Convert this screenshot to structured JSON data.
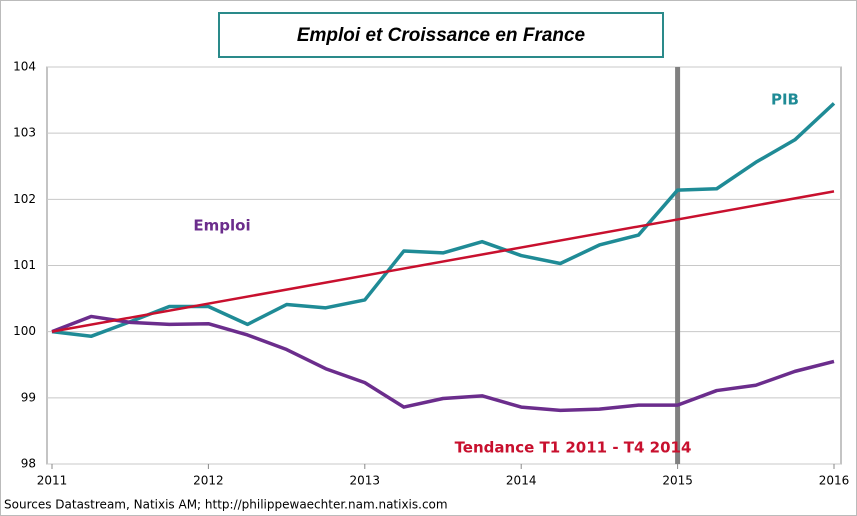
{
  "chart_data": {
    "type": "line",
    "title": "Emploi et Croissance en France",
    "source": "Sources Datastream, Natixis AM; http://philippewaechter.nam.natixis.com",
    "x": [
      2011,
      2011.25,
      2011.5,
      2011.75,
      2012,
      2012.25,
      2012.5,
      2012.75,
      2013,
      2013.25,
      2013.5,
      2013.75,
      2014,
      2014.25,
      2014.5,
      2014.75,
      2015,
      2015.25,
      2015.5,
      2015.75,
      2016
    ],
    "series": [
      {
        "name": "PIB",
        "color": "#1f8b96",
        "values": [
          100,
          99.93,
          100.15,
          100.38,
          100.38,
          100.11,
          100.41,
          100.36,
          100.48,
          101.22,
          101.19,
          101.36,
          101.15,
          101.03,
          101.31,
          101.46,
          102.14,
          102.16,
          102.56,
          102.9,
          103.45
        ]
      },
      {
        "name": "Emploi",
        "color": "#6b2d8c",
        "values": [
          100,
          100.23,
          100.14,
          100.11,
          100.12,
          99.95,
          99.73,
          99.44,
          99.23,
          98.86,
          98.99,
          99.03,
          98.86,
          98.81,
          98.83,
          98.89,
          98.89,
          99.11,
          99.19,
          99.4,
          99.55
        ]
      },
      {
        "name": "Tendance T1 2011 - T4 2014",
        "color": "#c8102e",
        "x": [
          2011,
          2016
        ],
        "values": [
          100,
          102.12
        ]
      }
    ],
    "vline": 2015,
    "vline_color": "#808080",
    "xlim": [
      2011,
      2016
    ],
    "xticks": [
      2011,
      2012,
      2013,
      2014,
      2015,
      2016
    ],
    "ylim": [
      98,
      104
    ],
    "yticks": [
      98,
      99,
      100,
      101,
      102,
      103,
      104
    ],
    "grid": true
  }
}
